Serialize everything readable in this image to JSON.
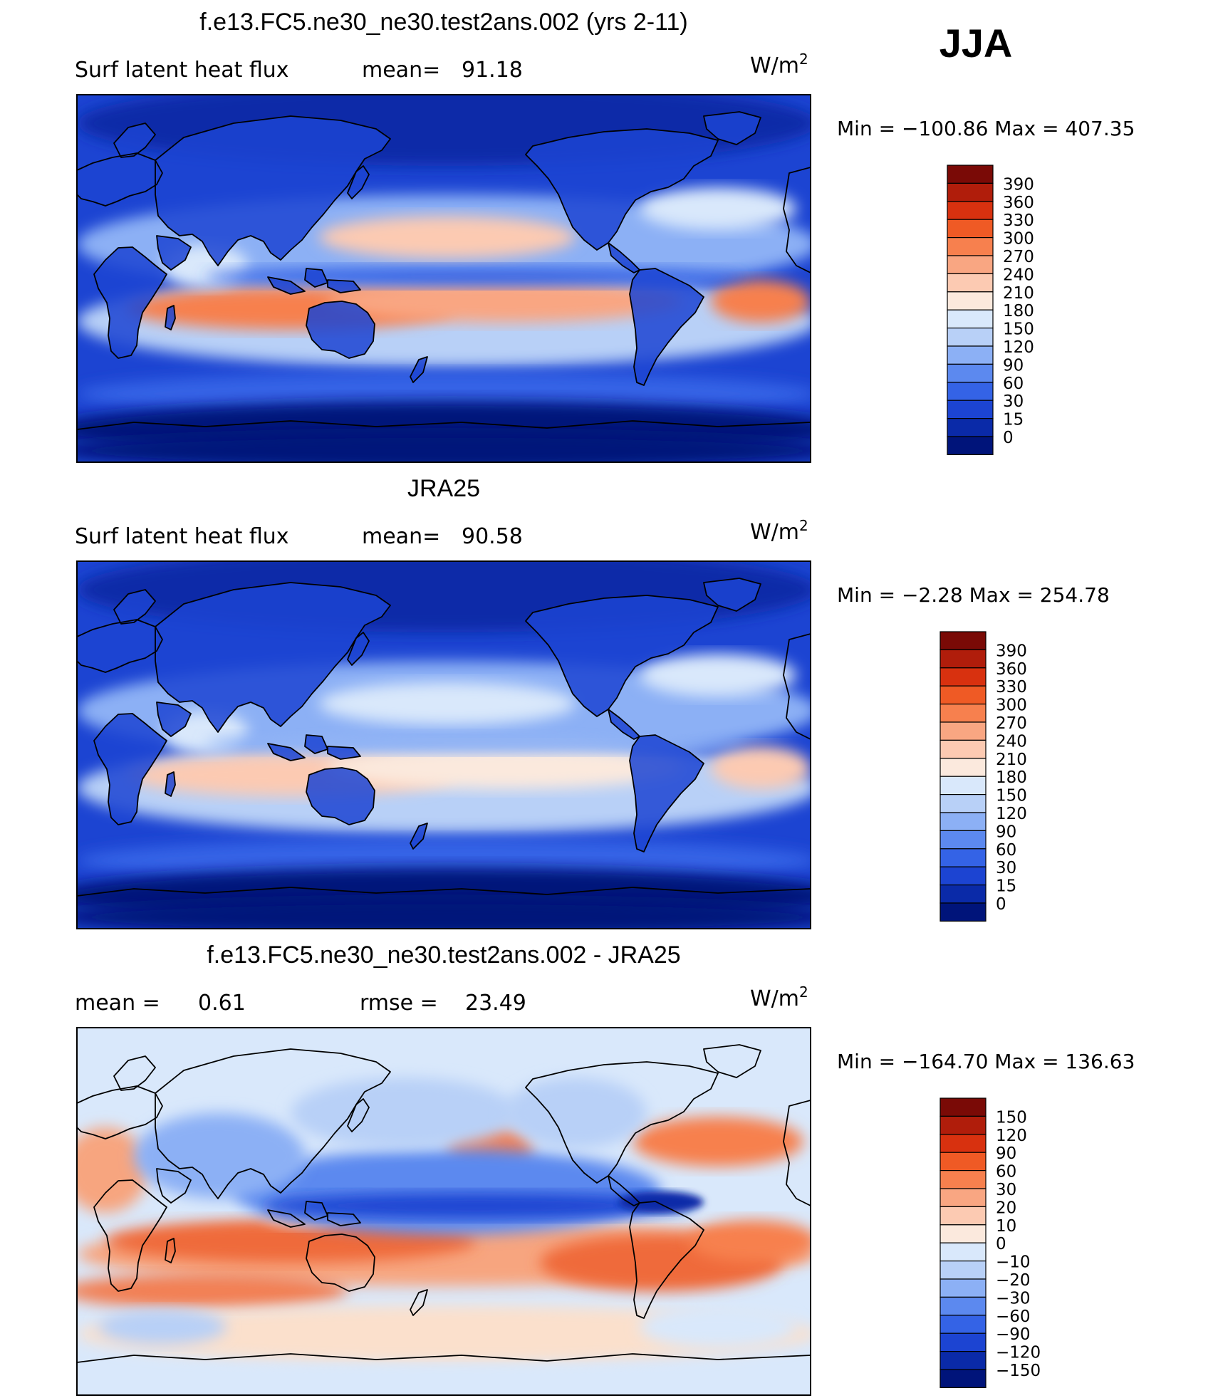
{
  "season": "JJA",
  "colors": {
    "ocean_deep": "#00147a",
    "ocean_mid": "#1b4fd6",
    "ocean_light": "#7ea6f4",
    "pale": "#d9e8fb",
    "warm_pale": "#fde6d2",
    "warm": "#f7a57f",
    "hot": "#e8461e",
    "coast": "#000000"
  },
  "panels": [
    {
      "id": "model",
      "title": "f.e13.FC5.ne30_ne30.test2ans.002 (yrs 2-11)",
      "left_label": "Surf latent heat flux",
      "stat_label": "mean=",
      "stat_value": "91.18",
      "units": "W/m",
      "units_sup": "2",
      "min_label": "Min",
      "min_value": "−100.86",
      "max_label": "Max",
      "max_value": "407.35",
      "colorbar": {
        "labels": [
          "390",
          "360",
          "330",
          "300",
          "270",
          "240",
          "210",
          "180",
          "150",
          "120",
          "90",
          "60",
          "30",
          "15",
          "0"
        ],
        "colors": [
          "#7a0a06",
          "#b01d0b",
          "#d8310f",
          "#ef5a25",
          "#f7804e",
          "#f9a682",
          "#fccab2",
          "#fbe9dd",
          "#d9e8fb",
          "#b8d0f7",
          "#8cb0f5",
          "#5c89ef",
          "#3463e6",
          "#1c44d2",
          "#0a2aa8",
          "#00147a"
        ]
      }
    },
    {
      "id": "obs",
      "title": "JRA25",
      "left_label": "Surf latent heat flux",
      "stat_label": "mean=",
      "stat_value": "90.58",
      "units": "W/m",
      "units_sup": "2",
      "min_label": "Min",
      "min_value": "−2.28",
      "max_label": "Max",
      "max_value": "254.78",
      "colorbar": {
        "labels": [
          "390",
          "360",
          "330",
          "300",
          "270",
          "240",
          "210",
          "180",
          "150",
          "120",
          "90",
          "60",
          "30",
          "15",
          "0"
        ],
        "colors": [
          "#7a0a06",
          "#b01d0b",
          "#d8310f",
          "#ef5a25",
          "#f7804e",
          "#f9a682",
          "#fccab2",
          "#fbe9dd",
          "#d9e8fb",
          "#b8d0f7",
          "#8cb0f5",
          "#5c89ef",
          "#3463e6",
          "#1c44d2",
          "#0a2aa8",
          "#00147a"
        ]
      }
    },
    {
      "id": "diff",
      "title": "f.e13.FC5.ne30_ne30.test2ans.002 - JRA25",
      "left_label": "mean =",
      "left_value": "0.61",
      "stat_label": "rmse =",
      "stat_value": "23.49",
      "units": "W/m",
      "units_sup": "2",
      "min_label": "Min",
      "min_value": "−164.70",
      "max_label": "Max",
      "max_value": "136.63",
      "colorbar": {
        "labels": [
          "150",
          "120",
          "90",
          "60",
          "30",
          "20",
          "10",
          "0",
          "−10",
          "−20",
          "−30",
          "−60",
          "−90",
          "−120",
          "−150"
        ],
        "colors": [
          "#7a0a06",
          "#b01d0b",
          "#d8310f",
          "#ef5a25",
          "#f7804e",
          "#f9a682",
          "#fccab2",
          "#fbe9dd",
          "#d9e8fb",
          "#b8d0f7",
          "#8cb0f5",
          "#5c89ef",
          "#3463e6",
          "#1c44d2",
          "#0a2aa8",
          "#00147a"
        ]
      }
    }
  ]
}
